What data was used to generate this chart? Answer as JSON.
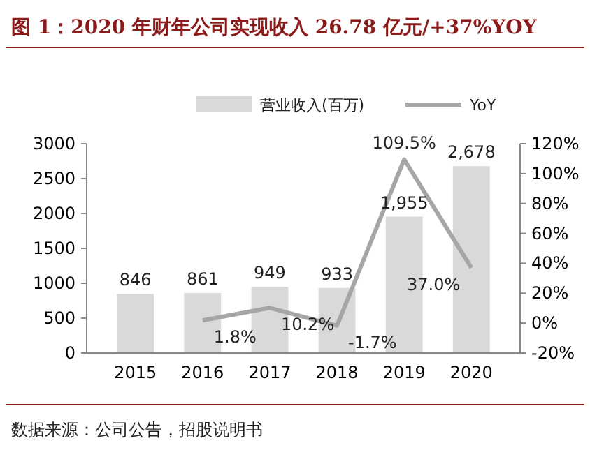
{
  "chart_data": {
    "type": "bar",
    "title": "图 1：2020 年财年公司实现收入 26.78 亿元/+37%YOY",
    "categories": [
      "2015",
      "2016",
      "2017",
      "2018",
      "2019",
      "2020"
    ],
    "series": [
      {
        "name": "营业收入(百万)",
        "color": "#d9d9d9",
        "values": [
          846,
          861,
          949,
          933,
          1955,
          2678
        ],
        "value_labels": [
          "846",
          "861",
          "949",
          "933",
          "1,955",
          "2,678"
        ]
      },
      {
        "name": "YoY",
        "type": "line",
        "axis": "y2",
        "color": "#a6a6a6",
        "values": [
          null,
          1.8,
          10.2,
          -1.7,
          109.5,
          37.0
        ],
        "value_labels": [
          null,
          "1.8%",
          "10.2%",
          "-1.7%",
          "109.5%",
          "37.0%"
        ]
      }
    ],
    "ylim": [
      0,
      3000
    ],
    "yticks": [
      0,
      500,
      1000,
      1500,
      2000,
      2500,
      3000
    ],
    "y2lim": [
      -20,
      120
    ],
    "y2ticks": [
      {
        "value": -20,
        "label": "-20%"
      },
      {
        "value": 0,
        "label": "0%"
      },
      {
        "value": 20,
        "label": "20%"
      },
      {
        "value": 40,
        "label": "40%"
      },
      {
        "value": 60,
        "label": "60%"
      },
      {
        "value": 80,
        "label": "80%"
      },
      {
        "value": 100,
        "label": "100%"
      },
      {
        "value": 120,
        "label": "120%"
      }
    ],
    "legend": "top",
    "grid": false,
    "marker": "none",
    "annotations": [
      "数据来源：公司公告，招股说明书"
    ]
  }
}
